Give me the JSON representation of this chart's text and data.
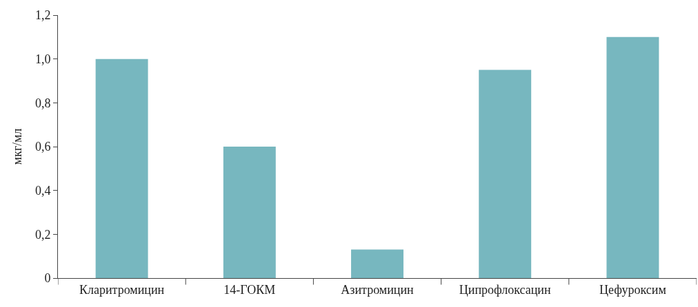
{
  "chart_data": {
    "type": "bar",
    "ylabel": "мкг/мл",
    "categories": [
      "Кларитромицин",
      "14-ГОКМ",
      "Азитромицин",
      "Ципрофлоксацин",
      "Цефуроксим"
    ],
    "values": [
      1.0,
      0.6,
      0.13,
      0.95,
      1.1
    ],
    "color": "#77b7bf",
    "ylim": [
      0,
      1.2
    ],
    "yticks": [
      0,
      {
        "value": 0.2,
        "label": "0,2"
      },
      {
        "value": 0.4,
        "label": "0,4"
      },
      {
        "value": 0.6,
        "label": "0,6"
      },
      {
        "value": 0.8,
        "label": "0,8"
      },
      {
        "value": 1.0,
        "label": "1,0"
      },
      {
        "value": 1.2,
        "label": "1,2"
      }
    ],
    "grid": false
  }
}
